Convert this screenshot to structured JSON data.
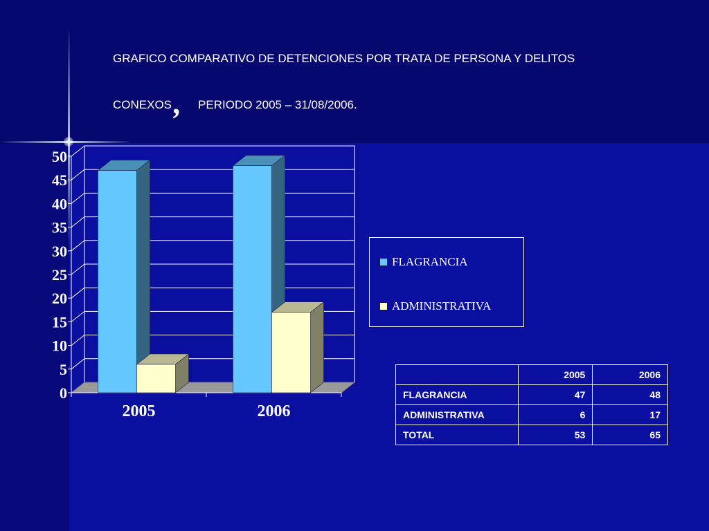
{
  "title": {
    "line1": "GRAFICO COMPARATIVO DE DETENCIONES POR TRATA DE PERSONA Y DELITOS",
    "line2_a": "CONEXOS",
    "line2_b": "PERIODO 2005 – 31/08/2006.",
    "comma": ","
  },
  "colors": {
    "flagrancia": "#66c7ff",
    "administrativa": "#ffffcc"
  },
  "chart_data": {
    "type": "bar",
    "categories": [
      "2005",
      "2006"
    ],
    "series": [
      {
        "name": "FLAGRANCIA",
        "values": [
          47,
          48
        ]
      },
      {
        "name": "ADMINISTRATIVA",
        "values": [
          6,
          17
        ]
      }
    ],
    "ylim": [
      0,
      50
    ],
    "yticks": [
      0,
      5,
      10,
      15,
      20,
      25,
      30,
      35,
      40,
      45,
      50
    ],
    "grid": true,
    "legend": "right"
  },
  "table": {
    "header": [
      "",
      "2005",
      "2006"
    ],
    "rows": [
      [
        "FLAGRANCIA",
        "47",
        "48"
      ],
      [
        "ADMINISTRATIVA",
        "6",
        "17"
      ],
      [
        "TOTAL",
        "53",
        "65"
      ]
    ]
  }
}
